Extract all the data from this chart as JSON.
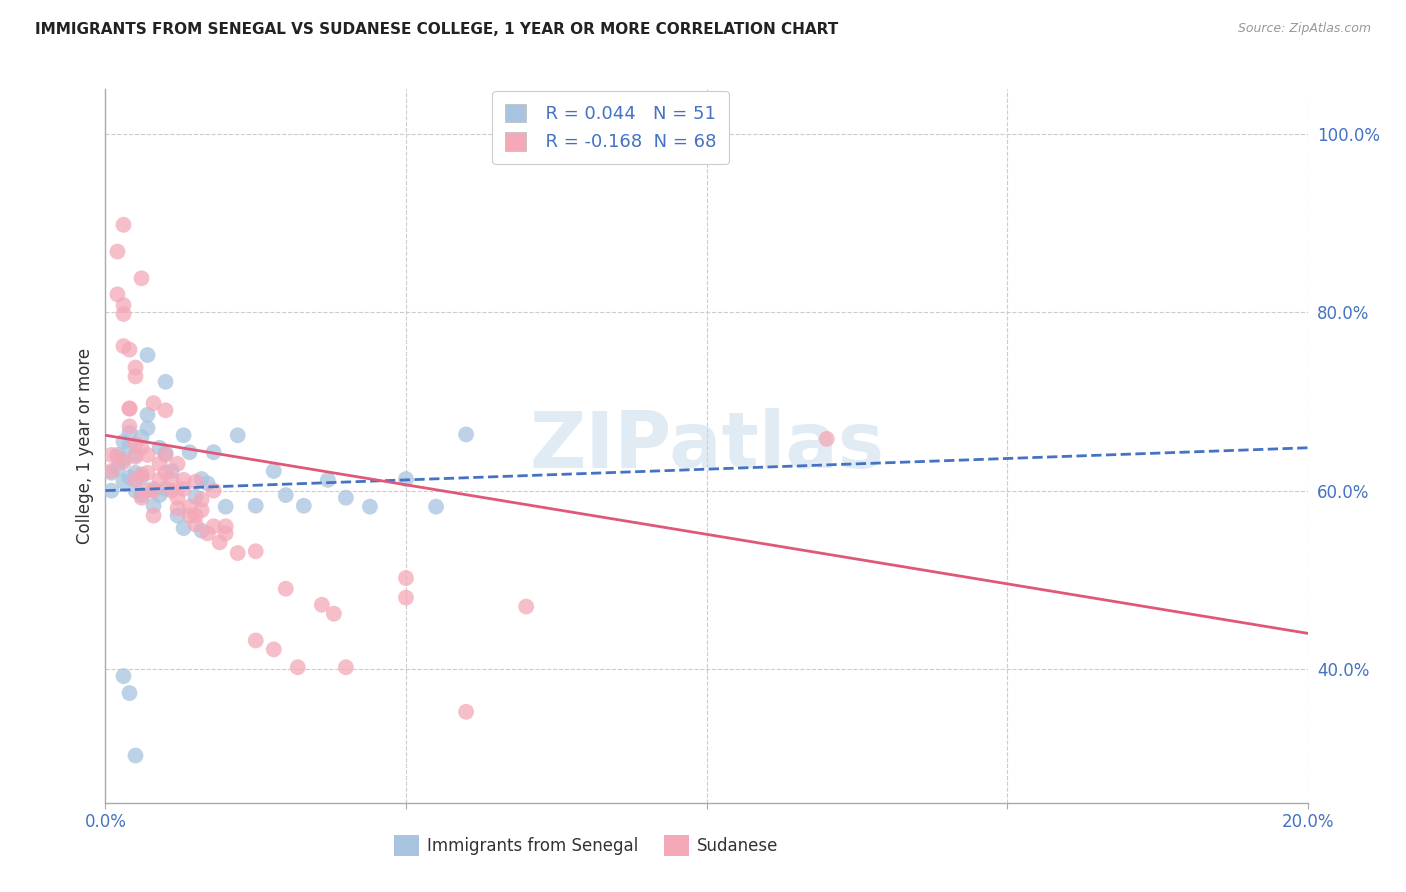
{
  "title": "IMMIGRANTS FROM SENEGAL VS SUDANESE COLLEGE, 1 YEAR OR MORE CORRELATION CHART",
  "source": "Source: ZipAtlas.com",
  "ylabel": "College, 1 year or more",
  "xlim": [
    0.0,
    0.2
  ],
  "ylim": [
    0.25,
    1.05
  ],
  "color_blue": "#a8c4e0",
  "color_pink": "#f4a8b8",
  "line_blue": "#4472c4",
  "line_pink": "#e05878",
  "watermark": "ZIPatlas",
  "blue_scatter_x": [
    0.001,
    0.001,
    0.002,
    0.002,
    0.003,
    0.003,
    0.003,
    0.004,
    0.004,
    0.004,
    0.005,
    0.005,
    0.005,
    0.006,
    0.006,
    0.006,
    0.007,
    0.007,
    0.008,
    0.008,
    0.009,
    0.009,
    0.01,
    0.01,
    0.011,
    0.012,
    0.013,
    0.014,
    0.015,
    0.016,
    0.017,
    0.018,
    0.02,
    0.022,
    0.025,
    0.028,
    0.03,
    0.033,
    0.037,
    0.04,
    0.044,
    0.05,
    0.055,
    0.06,
    0.003,
    0.004,
    0.005,
    0.007,
    0.01,
    0.013,
    0.016
  ],
  "blue_scatter_y": [
    0.6,
    0.62,
    0.625,
    0.64,
    0.61,
    0.635,
    0.655,
    0.615,
    0.65,
    0.665,
    0.6,
    0.62,
    0.64,
    0.595,
    0.615,
    0.66,
    0.67,
    0.685,
    0.583,
    0.602,
    0.648,
    0.595,
    0.602,
    0.642,
    0.622,
    0.572,
    0.662,
    0.643,
    0.593,
    0.613,
    0.608,
    0.643,
    0.582,
    0.662,
    0.583,
    0.622,
    0.595,
    0.583,
    0.612,
    0.592,
    0.582,
    0.613,
    0.582,
    0.663,
    0.392,
    0.373,
    0.303,
    0.752,
    0.722,
    0.558,
    0.555
  ],
  "pink_scatter_x": [
    0.001,
    0.001,
    0.002,
    0.002,
    0.003,
    0.003,
    0.003,
    0.004,
    0.004,
    0.005,
    0.005,
    0.005,
    0.006,
    0.006,
    0.006,
    0.007,
    0.007,
    0.007,
    0.008,
    0.008,
    0.009,
    0.009,
    0.01,
    0.01,
    0.011,
    0.011,
    0.012,
    0.012,
    0.013,
    0.013,
    0.014,
    0.014,
    0.015,
    0.015,
    0.016,
    0.016,
    0.017,
    0.018,
    0.019,
    0.02,
    0.022,
    0.025,
    0.028,
    0.032,
    0.036,
    0.05,
    0.12,
    0.003,
    0.004,
    0.005,
    0.006,
    0.008,
    0.01,
    0.012,
    0.015,
    0.018,
    0.02,
    0.025,
    0.03,
    0.038,
    0.04,
    0.06,
    0.07,
    0.002,
    0.003,
    0.004,
    0.005,
    0.05
  ],
  "pink_scatter_y": [
    0.622,
    0.64,
    0.638,
    0.82,
    0.798,
    0.808,
    0.632,
    0.672,
    0.692,
    0.612,
    0.638,
    0.652,
    0.592,
    0.618,
    0.648,
    0.6,
    0.62,
    0.64,
    0.572,
    0.6,
    0.612,
    0.63,
    0.62,
    0.64,
    0.6,
    0.612,
    0.58,
    0.592,
    0.602,
    0.612,
    0.572,
    0.582,
    0.562,
    0.572,
    0.578,
    0.59,
    0.552,
    0.56,
    0.542,
    0.56,
    0.53,
    0.432,
    0.422,
    0.402,
    0.472,
    0.502,
    0.658,
    0.898,
    0.758,
    0.728,
    0.838,
    0.698,
    0.69,
    0.63,
    0.61,
    0.6,
    0.552,
    0.532,
    0.49,
    0.462,
    0.402,
    0.352,
    0.47,
    0.868,
    0.762,
    0.692,
    0.738,
    0.48
  ],
  "blue_trend_x": [
    0.0,
    0.2
  ],
  "blue_trend_y": [
    0.6,
    0.648
  ],
  "pink_trend_x": [
    0.0,
    0.2
  ],
  "pink_trend_y": [
    0.662,
    0.44
  ],
  "grid_color": "#cccccc",
  "bg_color": "#ffffff",
  "tick_color": "#4472c4",
  "label_color": "#333333",
  "title_fontsize": 11,
  "source_fontsize": 9,
  "axis_fontsize": 12,
  "scatter_size": 130,
  "scatter_alpha": 0.75
}
